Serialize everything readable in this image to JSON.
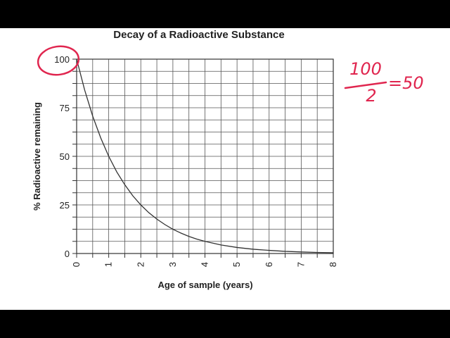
{
  "chart_data": {
    "type": "line",
    "title": "Decay of a Radioactive Substance",
    "xlabel": "Age of sample (years)",
    "ylabel": "% Radioactive remaining",
    "xlim": [
      0,
      8
    ],
    "ylim": [
      0,
      100
    ],
    "x_ticks": [
      "0",
      "1",
      "2",
      "3",
      "4",
      "5",
      "6",
      "7",
      "8"
    ],
    "y_ticks": [
      "0",
      "25",
      "50",
      "75",
      "100"
    ],
    "grid": true,
    "x_minor_step": 0.5,
    "y_minor_step": 6.25,
    "series": [
      {
        "x": [
          0,
          0.25,
          0.5,
          0.75,
          1,
          1.25,
          1.5,
          1.75,
          2,
          2.25,
          2.5,
          2.75,
          3,
          3.25,
          3.5,
          3.75,
          4,
          4.5,
          5,
          5.5,
          6,
          6.5,
          7,
          7.5,
          8
        ],
        "y": [
          100,
          84.1,
          70.7,
          59.5,
          50,
          42,
          35.4,
          29.7,
          25,
          21,
          17.7,
          14.9,
          12.5,
          10.5,
          8.8,
          7.4,
          6.25,
          4.4,
          3.1,
          2.2,
          1.6,
          1.1,
          0.8,
          0.55,
          0.4
        ],
        "color": "#333333"
      }
    ]
  },
  "annotations": {
    "handwritten_numerator": "100",
    "handwritten_denominator": "2",
    "handwritten_result": "=50",
    "ink_color": "#e0264f"
  }
}
